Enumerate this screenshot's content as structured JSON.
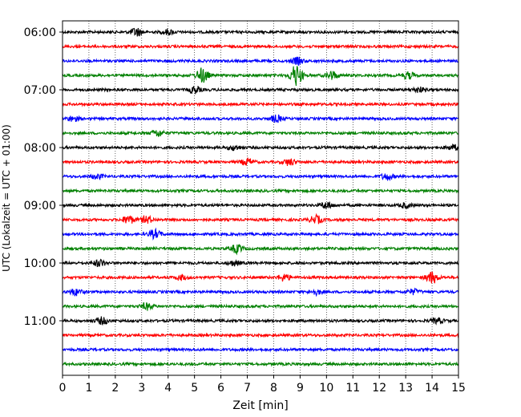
{
  "chart_data": {
    "type": "line",
    "subtype": "helicorder",
    "xlabel": "Zeit  [min]",
    "ylabel": "UTC (Lokalzeit = UTC + 01:00)",
    "xlim": [
      0,
      15
    ],
    "x_ticks": [
      0,
      1,
      2,
      3,
      4,
      5,
      6,
      7,
      8,
      9,
      10,
      11,
      12,
      13,
      14,
      15
    ],
    "x_grid": true,
    "y_time_labels": [
      "06:00",
      "07:00",
      "08:00",
      "09:00",
      "10:00",
      "11:00"
    ],
    "row_interval_minutes": 15,
    "start_time": "06:00",
    "rows": [
      {
        "time": "06:00",
        "color": "#000000",
        "events": [
          {
            "x": 2.8,
            "amp": 5
          },
          {
            "x": 4.0,
            "amp": 3
          }
        ]
      },
      {
        "time": "06:15",
        "color": "#ff0000",
        "events": []
      },
      {
        "time": "06:30",
        "color": "#0000ff",
        "events": [
          {
            "x": 8.9,
            "amp": 4
          }
        ]
      },
      {
        "time": "06:45",
        "color": "#008000",
        "events": [
          {
            "x": 5.3,
            "amp": 9
          },
          {
            "x": 8.85,
            "amp": 13
          },
          {
            "x": 10.2,
            "amp": 5
          },
          {
            "x": 13.1,
            "amp": 4
          }
        ]
      },
      {
        "time": "07:00",
        "color": "#000000",
        "events": [
          {
            "x": 5.0,
            "amp": 4
          },
          {
            "x": 13.5,
            "amp": 3
          }
        ]
      },
      {
        "time": "07:15",
        "color": "#ff0000",
        "events": []
      },
      {
        "time": "07:30",
        "color": "#0000ff",
        "events": [
          {
            "x": 0.4,
            "amp": 3
          },
          {
            "x": 8.1,
            "amp": 4
          }
        ]
      },
      {
        "time": "07:45",
        "color": "#008000",
        "events": [
          {
            "x": 3.6,
            "amp": 4
          }
        ]
      },
      {
        "time": "08:00",
        "color": "#000000",
        "events": [
          {
            "x": 6.5,
            "amp": 3
          },
          {
            "x": 14.8,
            "amp": 3
          }
        ]
      },
      {
        "time": "08:15",
        "color": "#ff0000",
        "events": [
          {
            "x": 7.0,
            "amp": 4
          },
          {
            "x": 8.6,
            "amp": 4
          }
        ]
      },
      {
        "time": "08:30",
        "color": "#0000ff",
        "events": [
          {
            "x": 1.3,
            "amp": 3
          },
          {
            "x": 12.3,
            "amp": 4
          }
        ]
      },
      {
        "time": "08:45",
        "color": "#008000",
        "events": []
      },
      {
        "time": "09:00",
        "color": "#000000",
        "events": [
          {
            "x": 10.0,
            "amp": 4
          },
          {
            "x": 13.0,
            "amp": 3
          }
        ]
      },
      {
        "time": "09:15",
        "color": "#ff0000",
        "events": [
          {
            "x": 2.5,
            "amp": 5
          },
          {
            "x": 3.2,
            "amp": 4
          },
          {
            "x": 9.6,
            "amp": 5
          }
        ]
      },
      {
        "time": "09:30",
        "color": "#0000ff",
        "events": [
          {
            "x": 3.5,
            "amp": 5
          }
        ]
      },
      {
        "time": "09:45",
        "color": "#008000",
        "events": [
          {
            "x": 6.6,
            "amp": 5
          }
        ]
      },
      {
        "time": "10:00",
        "color": "#000000",
        "events": [
          {
            "x": 1.4,
            "amp": 4
          },
          {
            "x": 6.5,
            "amp": 3
          }
        ]
      },
      {
        "time": "10:15",
        "color": "#ff0000",
        "events": [
          {
            "x": 4.5,
            "amp": 3
          },
          {
            "x": 8.4,
            "amp": 4
          },
          {
            "x": 14.0,
            "amp": 7
          }
        ]
      },
      {
        "time": "10:30",
        "color": "#0000ff",
        "events": [
          {
            "x": 0.5,
            "amp": 4
          },
          {
            "x": 9.6,
            "amp": 3
          },
          {
            "x": 13.3,
            "amp": 3
          }
        ]
      },
      {
        "time": "10:45",
        "color": "#008000",
        "events": [
          {
            "x": 3.2,
            "amp": 4
          }
        ]
      },
      {
        "time": "11:00",
        "color": "#000000",
        "events": [
          {
            "x": 1.5,
            "amp": 4
          },
          {
            "x": 14.2,
            "amp": 3
          }
        ]
      },
      {
        "time": "11:15",
        "color": "#ff0000",
        "events": []
      },
      {
        "time": "11:30",
        "color": "#0000ff",
        "events": []
      },
      {
        "time": "11:45",
        "color": "#008000",
        "events": []
      }
    ]
  }
}
